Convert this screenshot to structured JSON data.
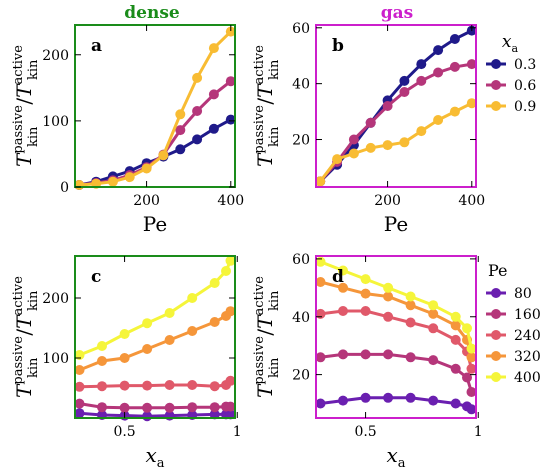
{
  "colors": {
    "dense_frame": "#1a8c1a",
    "gas_frame": "#cc1fcc",
    "xa_series": [
      "#1f1a8a",
      "#b5367a",
      "#f8bc33"
    ],
    "pe_series": [
      "#6a1fb0",
      "#b5367a",
      "#e0596a",
      "#f5963a",
      "#f5f53a"
    ]
  },
  "headers": {
    "dense": "dense",
    "gas": "gas"
  },
  "legend_xa": {
    "title": "x_a",
    "entries": [
      "0.3",
      "0.6",
      "0.9"
    ]
  },
  "legend_pe": {
    "title": "Pe",
    "entries": [
      "80",
      "160",
      "240",
      "320",
      "400"
    ]
  },
  "ylabel": "T_kin^passive / T_kin^active",
  "chart_data": [
    {
      "panel": "a",
      "type": "line",
      "header": "dense",
      "xlabel": "Pe",
      "ylabel": "T_kin^passive / T_kin^active",
      "xlim": [
        30,
        410
      ],
      "ylim": [
        0,
        245
      ],
      "xticks": [
        200,
        400
      ],
      "yticks": [
        0,
        100,
        200
      ],
      "series": [
        {
          "name": "0.3",
          "x": [
            40,
            80,
            120,
            160,
            200,
            240,
            280,
            320,
            360,
            400
          ],
          "y": [
            3,
            8,
            16,
            24,
            36,
            46,
            57,
            72,
            88,
            102
          ]
        },
        {
          "name": "0.6",
          "x": [
            40,
            80,
            120,
            160,
            200,
            240,
            280,
            320,
            360,
            400
          ],
          "y": [
            3,
            6,
            10,
            18,
            30,
            49,
            86,
            115,
            140,
            160
          ]
        },
        {
          "name": "0.9",
          "x": [
            40,
            80,
            120,
            160,
            200,
            240,
            280,
            320,
            360,
            400
          ],
          "y": [
            3,
            5,
            8,
            15,
            28,
            48,
            110,
            165,
            210,
            235
          ]
        }
      ]
    },
    {
      "panel": "b",
      "type": "line",
      "header": "gas",
      "xlabel": "Pe",
      "ylabel": "T_kin^passive / T_kin^active",
      "xlim": [
        30,
        410
      ],
      "ylim": [
        3,
        61
      ],
      "xticks": [
        200,
        400
      ],
      "yticks": [
        20,
        40,
        60
      ],
      "series": [
        {
          "name": "0.3",
          "x": [
            40,
            80,
            120,
            160,
            200,
            240,
            280,
            320,
            360,
            400
          ],
          "y": [
            5,
            11,
            18,
            26,
            34,
            41,
            47,
            52,
            56,
            59
          ]
        },
        {
          "name": "0.6",
          "x": [
            40,
            80,
            120,
            160,
            200,
            240,
            280,
            320,
            360,
            400
          ],
          "y": [
            5,
            12,
            20,
            26,
            32,
            37,
            41,
            44,
            46,
            47
          ]
        },
        {
          "name": "0.9",
          "x": [
            40,
            80,
            120,
            160,
            200,
            240,
            280,
            320,
            360,
            400
          ],
          "y": [
            5,
            13,
            15,
            17,
            18,
            19,
            23,
            27,
            30,
            33
          ]
        }
      ]
    },
    {
      "panel": "c",
      "type": "line",
      "header": "",
      "xlabel": "x_a",
      "ylabel": "T_kin^passive / T_kin^active",
      "xlim": [
        0.28,
        0.99
      ],
      "ylim": [
        0,
        270
      ],
      "xticks": [
        0.5,
        1.0
      ],
      "yticks": [
        100,
        200
      ],
      "series": [
        {
          "name": "80",
          "x": [
            0.3,
            0.4,
            0.5,
            0.6,
            0.7,
            0.8,
            0.9,
            0.95,
            0.97
          ],
          "y": [
            8,
            5,
            4,
            3,
            4,
            5,
            6,
            6,
            6
          ]
        },
        {
          "name": "160",
          "x": [
            0.3,
            0.4,
            0.5,
            0.6,
            0.7,
            0.8,
            0.9,
            0.95,
            0.97
          ],
          "y": [
            24,
            18,
            17,
            17,
            17,
            18,
            18,
            19,
            19
          ]
        },
        {
          "name": "240",
          "x": [
            0.3,
            0.4,
            0.5,
            0.6,
            0.7,
            0.8,
            0.9,
            0.95,
            0.97
          ],
          "y": [
            52,
            53,
            54,
            54,
            55,
            55,
            53,
            55,
            62
          ]
        },
        {
          "name": "320",
          "x": [
            0.3,
            0.4,
            0.5,
            0.6,
            0.7,
            0.8,
            0.9,
            0.95,
            0.97
          ],
          "y": [
            80,
            95,
            100,
            115,
            130,
            145,
            160,
            170,
            178
          ]
        },
        {
          "name": "400",
          "x": [
            0.3,
            0.4,
            0.5,
            0.6,
            0.7,
            0.8,
            0.9,
            0.95,
            0.97
          ],
          "y": [
            105,
            120,
            140,
            158,
            175,
            200,
            225,
            245,
            262
          ]
        }
      ]
    },
    {
      "panel": "d",
      "type": "line",
      "header": "",
      "xlabel": "x_a",
      "ylabel": "T_kin^passive / T_kin^active",
      "xlim": [
        0.28,
        0.99
      ],
      "ylim": [
        5,
        61
      ],
      "xticks": [
        0.5,
        1.0
      ],
      "yticks": [
        20,
        40,
        60
      ],
      "series": [
        {
          "name": "80",
          "x": [
            0.3,
            0.4,
            0.5,
            0.6,
            0.7,
            0.8,
            0.9,
            0.95,
            0.97
          ],
          "y": [
            10,
            11,
            12,
            12,
            12,
            11,
            10,
            9,
            8
          ]
        },
        {
          "name": "160",
          "x": [
            0.3,
            0.4,
            0.5,
            0.6,
            0.7,
            0.8,
            0.9,
            0.95,
            0.97
          ],
          "y": [
            26,
            27,
            27,
            27,
            26,
            25,
            22,
            19,
            14
          ]
        },
        {
          "name": "240",
          "x": [
            0.3,
            0.4,
            0.5,
            0.6,
            0.7,
            0.8,
            0.9,
            0.95,
            0.97
          ],
          "y": [
            41,
            42,
            42,
            40,
            38,
            36,
            32,
            28,
            22
          ]
        },
        {
          "name": "320",
          "x": [
            0.3,
            0.4,
            0.5,
            0.6,
            0.7,
            0.8,
            0.9,
            0.95,
            0.97
          ],
          "y": [
            52,
            50,
            48,
            47,
            44,
            41,
            37,
            32,
            26
          ]
        },
        {
          "name": "400",
          "x": [
            0.3,
            0.4,
            0.5,
            0.6,
            0.7,
            0.8,
            0.9,
            0.95,
            0.97
          ],
          "y": [
            59,
            56,
            53,
            50,
            47,
            44,
            40,
            36,
            29
          ]
        }
      ]
    }
  ]
}
